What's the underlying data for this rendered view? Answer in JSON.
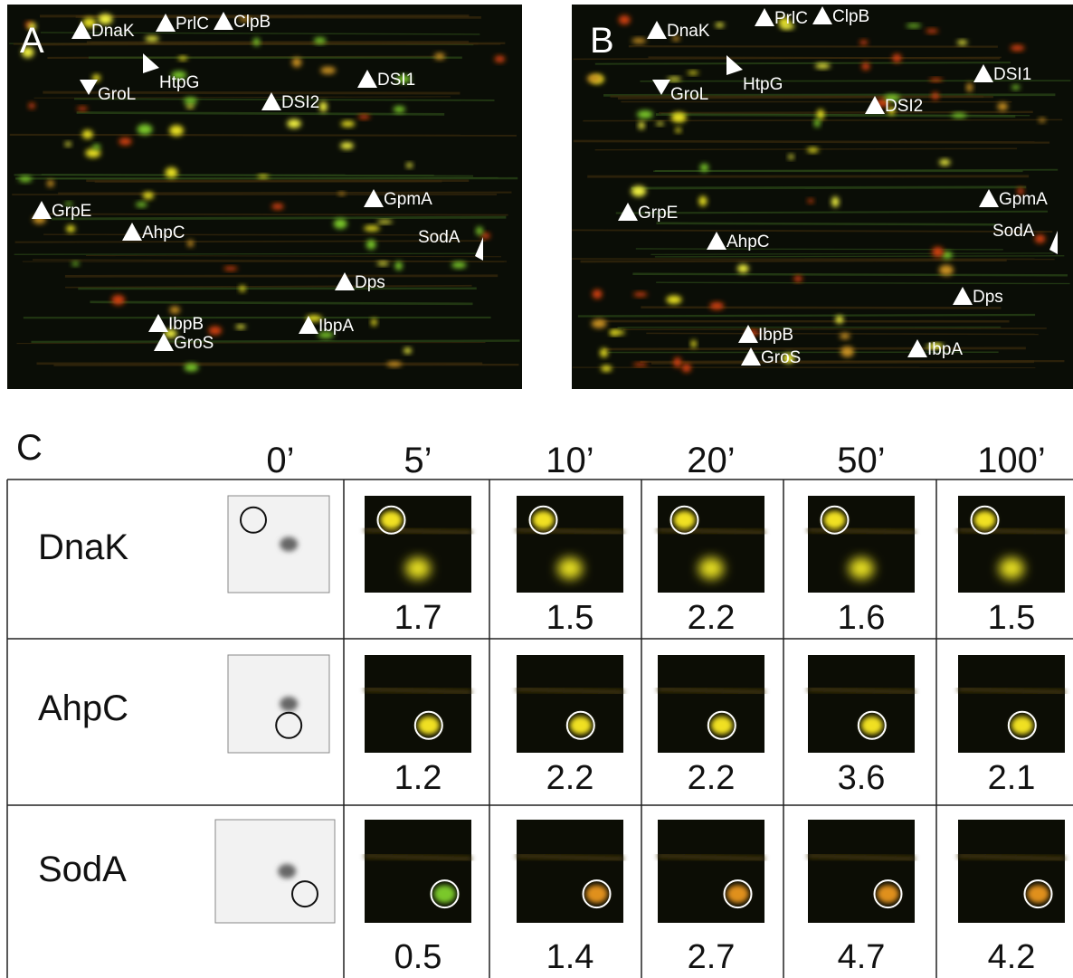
{
  "panels": [
    {
      "letter": "A",
      "labels": [
        "DnaK",
        "PrlC",
        "ClpB",
        "HtpG",
        "GroL",
        "DSI1",
        "DSI2",
        "GrpE",
        "AhpC",
        "GpmA",
        "SodA",
        "Dps",
        "IbpB",
        "GroS",
        "IbpA"
      ]
    },
    {
      "letter": "B",
      "labels": [
        "DnaK",
        "PrlC",
        "ClpB",
        "HtpG",
        "GroL",
        "DSI1",
        "DSI2",
        "GrpE",
        "AhpC",
        "GpmA",
        "SodA",
        "Dps",
        "IbpB",
        "GroS",
        "IbpA"
      ]
    }
  ],
  "table": {
    "letter": "C",
    "times": [
      "0’",
      "5’",
      "10’",
      "20’",
      "50’",
      "100’"
    ],
    "rows": [
      {
        "protein": "DnaK",
        "ratios": [
          1.7,
          1.5,
          2.2,
          1.6,
          1.5
        ]
      },
      {
        "protein": "AhpC",
        "ratios": [
          1.2,
          2.2,
          2.2,
          3.6,
          2.1
        ]
      },
      {
        "protein": "SodA",
        "ratios": [
          0.5,
          1.4,
          2.7,
          4.7,
          4.2
        ]
      }
    ]
  }
}
